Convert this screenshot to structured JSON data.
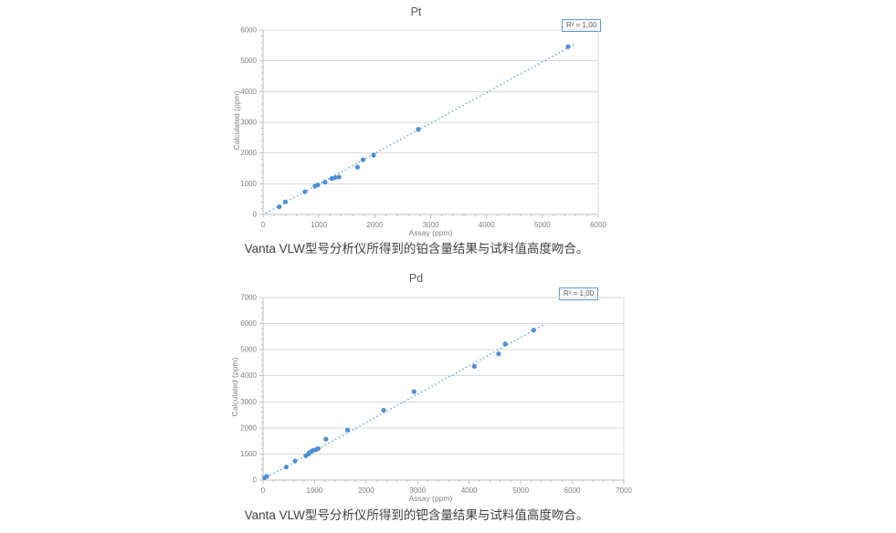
{
  "page": {
    "background_color": "#ffffff"
  },
  "chart_data": [
    {
      "type": "scatter",
      "title": "Pt",
      "r2_label": "R² = 1,00",
      "xlabel": "Assay (ppm)",
      "ylabel": "Calculated (ppm)",
      "caption": "Vanta VLW型号分析仪所得到的铂含量结果与试料值高度吻合。",
      "xlim": [
        0,
        6000
      ],
      "ylim": [
        0,
        6000
      ],
      "xticks": [
        0,
        1000,
        2000,
        3000,
        4000,
        5000,
        6000
      ],
      "yticks": [
        0,
        1000,
        2000,
        3000,
        4000,
        5000,
        6000
      ],
      "minor_tick_step": 200,
      "grid": "horizontal-only",
      "legend_position": "none",
      "marker_color": "#4e8fd3",
      "trend_color": "#5b9bd5",
      "grid_color": "#d9d9d9",
      "axis_color": "#bfbfbf",
      "trendline": {
        "style": "dotted",
        "x": [
          50,
          5600
        ],
        "y": [
          45,
          5560
        ]
      },
      "points": [
        [
          290,
          250
        ],
        [
          400,
          410
        ],
        [
          750,
          740
        ],
        [
          930,
          920
        ],
        [
          980,
          960
        ],
        [
          1110,
          1050
        ],
        [
          1230,
          1170
        ],
        [
          1290,
          1200
        ],
        [
          1360,
          1220
        ],
        [
          1690,
          1540
        ],
        [
          1790,
          1780
        ],
        [
          1980,
          1930
        ],
        [
          2780,
          2770
        ],
        [
          5460,
          5460
        ]
      ]
    },
    {
      "type": "scatter",
      "title": "Pd",
      "r2_label": "R² = 1,00",
      "xlabel": "Assay (ppm)",
      "ylabel": "Calculated (ppm)",
      "caption": "Vanta VLW型号分析仪所得到的钯含量结果与试料值高度吻合。",
      "xlim": [
        0,
        7000
      ],
      "ylim": [
        0,
        7000
      ],
      "xticks": [
        0,
        1000,
        2000,
        3000,
        4000,
        5000,
        6000,
        7000
      ],
      "yticks": [
        0,
        1000,
        2000,
        3000,
        4000,
        5000,
        6000,
        7000
      ],
      "minor_tick_step": 200,
      "grid": "horizontal-only",
      "legend_position": "none",
      "marker_color": "#4e8fd3",
      "trend_color": "#5b9bd5",
      "grid_color": "#d9d9d9",
      "axis_color": "#bfbfbf",
      "trendline": {
        "style": "dotted",
        "x": [
          0,
          5450
        ],
        "y": [
          30,
          5960
        ]
      },
      "points": [
        [
          30,
          90
        ],
        [
          70,
          140
        ],
        [
          450,
          500
        ],
        [
          620,
          730
        ],
        [
          830,
          930
        ],
        [
          880,
          1000
        ],
        [
          900,
          1060
        ],
        [
          930,
          1080
        ],
        [
          950,
          1110
        ],
        [
          970,
          1140
        ],
        [
          1020,
          1160
        ],
        [
          1070,
          1210
        ],
        [
          1220,
          1570
        ],
        [
          1640,
          1920
        ],
        [
          2340,
          2680
        ],
        [
          2930,
          3390
        ],
        [
          4100,
          4360
        ],
        [
          4570,
          4840
        ],
        [
          4700,
          5220
        ],
        [
          5250,
          5750
        ]
      ]
    }
  ]
}
